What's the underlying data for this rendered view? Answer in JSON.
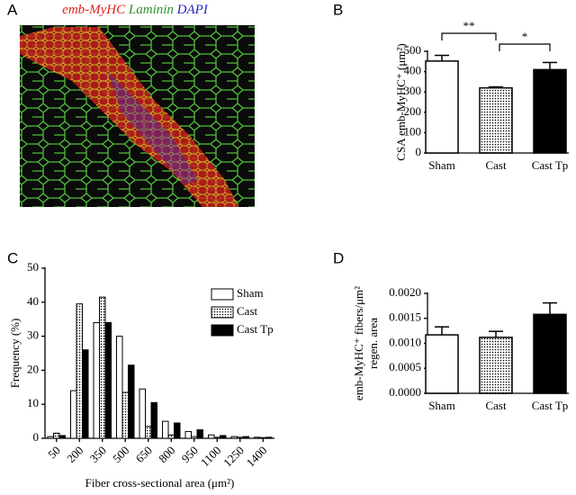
{
  "panel_labels": [
    "A",
    "B",
    "C",
    "D"
  ],
  "image": {
    "labels": [
      {
        "text": "emb-MyHC",
        "color": "#e0211c"
      },
      {
        "text": "Laminin",
        "color": "#2f8f2f"
      },
      {
        "text": "DAPI",
        "color": "#2424c8"
      }
    ]
  },
  "chart_data": [
    {
      "type": "bar",
      "ylabel": "CSA emb-MyHC⁺ (μm²)",
      "categories": [
        "Sham",
        "Cast",
        "Cast Tp"
      ],
      "values": [
        452,
        320,
        410
      ],
      "errors": [
        28,
        5,
        35
      ],
      "styles": [
        "open",
        "dotted",
        "solid"
      ],
      "ylim": [
        0,
        500
      ],
      "yticks": [
        0,
        100,
        200,
        300,
        400,
        500
      ],
      "annotations": [
        "**",
        "*"
      ]
    },
    {
      "type": "grouped_bar",
      "xlabel": "Fiber cross-sectional area (μm²)",
      "ylabel": "Frequency (%)",
      "categories": [
        "50",
        "200",
        "350",
        "500",
        "650",
        "800",
        "950",
        "1100",
        "1250",
        "1400"
      ],
      "series": [
        {
          "name": "Sham",
          "style": "open",
          "values": [
            0.5,
            14,
            34,
            30,
            14.5,
            5,
            2,
            1,
            0.5,
            0.3
          ]
        },
        {
          "name": "Cast",
          "style": "dotted",
          "values": [
            1.5,
            39.5,
            41.5,
            13.5,
            3.5,
            1,
            0.5,
            0.3,
            0.3,
            0.2
          ]
        },
        {
          "name": "Cast Tp",
          "style": "solid",
          "values": [
            0.8,
            26,
            34,
            21.5,
            10.5,
            4.5,
            2.5,
            0.8,
            0.5,
            0.3
          ]
        }
      ],
      "ylim": [
        0,
        50
      ],
      "yticks": [
        0,
        10,
        20,
        30,
        40,
        50
      ],
      "legend": "upper right"
    },
    {
      "type": "bar",
      "ylabel": [
        "emb-MyHC⁺ fibers/μm²",
        "regen. area"
      ],
      "categories": [
        "Sham",
        "Cast",
        "Cast Tp"
      ],
      "values": [
        0.00117,
        0.00112,
        0.00158
      ],
      "errors": [
        0.00016,
        0.00012,
        0.00023
      ],
      "styles": [
        "open",
        "dotted",
        "solid"
      ],
      "ylim": [
        0,
        0.002
      ],
      "yticks": [
        {
          "value": 0,
          "label": "0.0000"
        },
        {
          "value": 0.0005,
          "label": "0.0005"
        },
        {
          "value": 0.001,
          "label": "0.0010"
        },
        {
          "value": 0.0015,
          "label": "0.0015"
        },
        {
          "value": 0.002,
          "label": "0.0020"
        }
      ]
    }
  ]
}
